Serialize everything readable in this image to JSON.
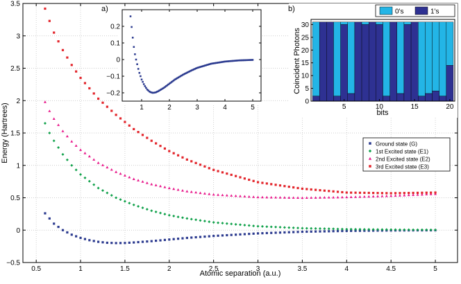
{
  "colors": {
    "ground": "#2b3a8f",
    "e1": "#12a24c",
    "e2": "#e8198b",
    "e3": "#e3262c",
    "zeros": "#23b5e6",
    "ones": "#2e3192",
    "grid": "#bdbdbd"
  },
  "chart_data": [
    {
      "type": "scatter",
      "id": "main",
      "title": "",
      "xlabel": "Atomic separation (a.u.)",
      "ylabel": "Energy (Hartrees)",
      "xlim": [
        0.35,
        5.25
      ],
      "ylim": [
        -0.5,
        3.5
      ],
      "xticks": [
        0.5,
        1,
        1.5,
        2,
        2.5,
        3,
        3.5,
        4,
        4.5,
        5
      ],
      "xtick_labels": [
        "0.5",
        "1",
        "1.5",
        "2",
        "2.5",
        "3",
        "3.5",
        "4",
        "4.5",
        "5"
      ],
      "yticks": [
        -0.5,
        0,
        0.5,
        1,
        1.5,
        2,
        2.5,
        3,
        3.5
      ],
      "ytick_labels": [
        "−0.5",
        "0",
        "0.5",
        "1",
        "1.5",
        "2",
        "2.5",
        "3",
        "3.5"
      ],
      "grid": true,
      "legend_position": "center-right",
      "series": [
        {
          "key": "ground",
          "name": "Ground state (G)",
          "marker": "square",
          "points": [
            [
              0.6,
              0.26
            ],
            [
              0.65,
              0.18
            ],
            [
              0.7,
              0.1
            ],
            [
              0.8,
              0.0
            ],
            [
              0.9,
              -0.07
            ],
            [
              1.0,
              -0.12
            ],
            [
              1.1,
              -0.155
            ],
            [
              1.2,
              -0.18
            ],
            [
              1.3,
              -0.195
            ],
            [
              1.4,
              -0.2
            ],
            [
              1.5,
              -0.198
            ],
            [
              1.6,
              -0.19
            ],
            [
              1.8,
              -0.17
            ],
            [
              2.0,
              -0.145
            ],
            [
              2.2,
              -0.12
            ],
            [
              2.5,
              -0.09
            ],
            [
              3.0,
              -0.05
            ],
            [
              3.5,
              -0.025
            ],
            [
              4.0,
              -0.012
            ],
            [
              4.5,
              -0.005
            ],
            [
              5.0,
              -0.002
            ]
          ]
        },
        {
          "key": "e1",
          "name": "1st Excited state (E1)",
          "marker": "diamond",
          "points": [
            [
              0.6,
              1.65
            ],
            [
              0.65,
              1.5
            ],
            [
              0.7,
              1.38
            ],
            [
              0.8,
              1.17
            ],
            [
              0.9,
              1.0
            ],
            [
              1.0,
              0.86
            ],
            [
              1.2,
              0.65
            ],
            [
              1.4,
              0.5
            ],
            [
              1.6,
              0.39
            ],
            [
              1.8,
              0.3
            ],
            [
              2.0,
              0.23
            ],
            [
              2.2,
              0.18
            ],
            [
              2.5,
              0.12
            ],
            [
              3.0,
              0.06
            ],
            [
              3.5,
              0.03
            ],
            [
              4.0,
              0.015
            ],
            [
              4.5,
              0.008
            ],
            [
              5.0,
              0.004
            ]
          ]
        },
        {
          "key": "e2",
          "name": "2nd Excited state (E2)",
          "marker": "triangle",
          "points": [
            [
              0.6,
              1.98
            ],
            [
              0.65,
              1.84
            ],
            [
              0.7,
              1.72
            ],
            [
              0.8,
              1.53
            ],
            [
              0.9,
              1.37
            ],
            [
              1.0,
              1.24
            ],
            [
              1.2,
              1.04
            ],
            [
              1.4,
              0.9
            ],
            [
              1.6,
              0.79
            ],
            [
              1.8,
              0.71
            ],
            [
              2.0,
              0.65
            ],
            [
              2.2,
              0.6
            ],
            [
              2.5,
              0.55
            ],
            [
              3.0,
              0.51
            ],
            [
              3.5,
              0.5
            ],
            [
              4.0,
              0.51
            ],
            [
              4.5,
              0.53
            ],
            [
              5.0,
              0.56
            ]
          ]
        },
        {
          "key": "e3",
          "name": "3rd Excited state (E3)",
          "marker": "square",
          "points": [
            [
              0.6,
              3.42
            ],
            [
              0.65,
              3.23
            ],
            [
              0.7,
              3.05
            ],
            [
              0.8,
              2.78
            ],
            [
              0.9,
              2.55
            ],
            [
              1.0,
              2.35
            ],
            [
              1.2,
              2.03
            ],
            [
              1.4,
              1.78
            ],
            [
              1.6,
              1.56
            ],
            [
              1.8,
              1.38
            ],
            [
              2.0,
              1.22
            ],
            [
              2.2,
              1.09
            ],
            [
              2.5,
              0.93
            ],
            [
              3.0,
              0.74
            ],
            [
              3.5,
              0.64
            ],
            [
              4.0,
              0.58
            ],
            [
              4.5,
              0.57
            ],
            [
              5.0,
              0.58
            ]
          ]
        }
      ]
    },
    {
      "type": "scatter",
      "id": "inset_a",
      "panel_label": "a)",
      "xlim": [
        0.3,
        5.3
      ],
      "ylim": [
        -0.25,
        0.3
      ],
      "xticks": [
        1,
        2,
        3,
        4,
        5
      ],
      "xtick_labels": [
        "1",
        "2",
        "3",
        "4",
        "5"
      ],
      "yticks": [
        -0.2,
        -0.1,
        0,
        0.1,
        0.2
      ],
      "ytick_labels": [
        "−0.2",
        "−0.1",
        "0",
        "0.1",
        "0.2"
      ],
      "series": [
        {
          "key": "ground",
          "name": "Ground state (G)",
          "marker": "square",
          "points": [
            [
              0.6,
              0.26
            ],
            [
              0.65,
              0.18
            ],
            [
              0.7,
              0.1
            ],
            [
              0.75,
              0.04
            ],
            [
              0.8,
              0.0
            ],
            [
              0.9,
              -0.07
            ],
            [
              1.0,
              -0.12
            ],
            [
              1.1,
              -0.155
            ],
            [
              1.2,
              -0.18
            ],
            [
              1.3,
              -0.195
            ],
            [
              1.4,
              -0.2
            ],
            [
              1.5,
              -0.198
            ],
            [
              1.6,
              -0.19
            ],
            [
              1.8,
              -0.17
            ],
            [
              2.0,
              -0.145
            ],
            [
              2.2,
              -0.12
            ],
            [
              2.5,
              -0.09
            ],
            [
              2.8,
              -0.065
            ],
            [
              3.0,
              -0.05
            ],
            [
              3.5,
              -0.025
            ],
            [
              4.0,
              -0.012
            ],
            [
              4.5,
              -0.005
            ],
            [
              5.0,
              -0.002
            ]
          ]
        }
      ]
    },
    {
      "type": "bar",
      "stacked": true,
      "id": "inset_b",
      "panel_label": "b)",
      "xlabel": "bits",
      "ylabel": "Coincident Photons",
      "categories": [
        1,
        2,
        3,
        4,
        5,
        6,
        7,
        8,
        9,
        10,
        11,
        12,
        13,
        14,
        15,
        16,
        17,
        18,
        19,
        20
      ],
      "xticks": [
        5,
        10,
        15,
        20
      ],
      "xtick_labels": [
        "5",
        "10",
        "15",
        "20"
      ],
      "ylim": [
        0,
        32
      ],
      "yticks": [
        0,
        5,
        10,
        15,
        20,
        25,
        30
      ],
      "ytick_labels": [
        "0",
        "5",
        "10",
        "15",
        "20",
        "25",
        "30"
      ],
      "legend_position": "top",
      "series": [
        {
          "key": "ones",
          "name": "1's",
          "values": [
            2,
            31,
            31,
            2,
            30,
            3,
            31,
            30,
            31,
            30,
            2,
            31,
            3,
            30,
            31,
            2,
            3,
            4,
            2,
            14
          ]
        },
        {
          "key": "zeros",
          "name": "0's",
          "values": [
            29,
            0,
            0,
            29,
            1,
            28,
            0,
            1,
            0,
            1,
            29,
            0,
            28,
            1,
            0,
            29,
            28,
            27,
            29,
            17
          ]
        }
      ]
    }
  ]
}
